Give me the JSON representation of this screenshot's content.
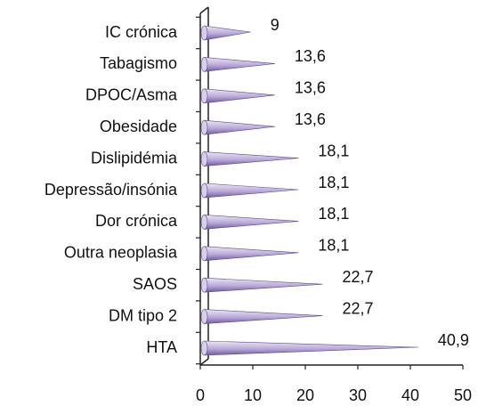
{
  "chart_data": {
    "type": "bar",
    "orientation": "horizontal",
    "categories": [
      "IC crónica",
      "Tabagismo",
      "DPOC/Asma",
      "Obesidade",
      "Dislipidémia",
      "Depressão/insónia",
      "Dor crónica",
      "Outra neoplasia",
      "SAOS",
      "DM tipo 2",
      "HTA"
    ],
    "values": [
      9,
      13.6,
      13.6,
      13.6,
      18.1,
      18.1,
      18.1,
      18.1,
      22.7,
      22.7,
      40.9
    ],
    "value_labels": [
      "9",
      "13,6",
      "13,6",
      "13,6",
      "18,1",
      "18,1",
      "18,1",
      "18,1",
      "22,7",
      "22,7",
      "40,9"
    ],
    "xlim": [
      0,
      50
    ],
    "xticks": [
      "0",
      "10",
      "20",
      "30",
      "40",
      "50"
    ],
    "grid": false,
    "legend": "none",
    "bar_style": "3d-cone",
    "colors": {
      "bar_light": "#ece6f6",
      "bar_mid": "#b9a9d8",
      "bar_dark": "#6f5a9a",
      "axis": "#222222"
    }
  }
}
